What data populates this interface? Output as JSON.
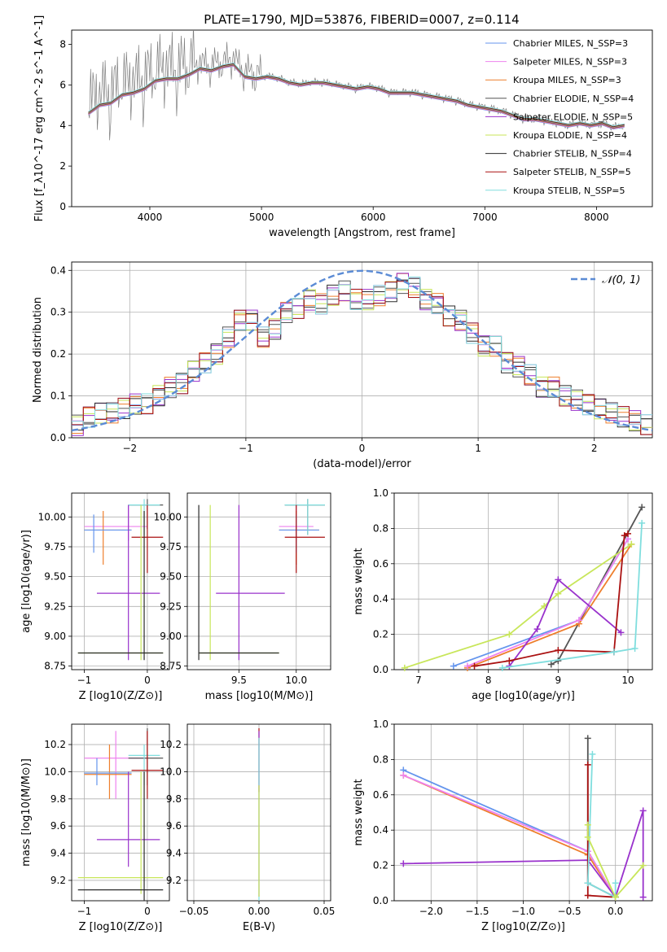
{
  "figure_title": "PLATE=1790, MJD=53876, FIBERID=0007, z=0.114",
  "chart_data": [
    {
      "type": "line",
      "name": "spectrum",
      "xlabel": "wavelength [Angstrom, rest frame]",
      "ylabel": "Flux [f_λ10^-17 erg cm^-2 s^-1 A^-1]",
      "xlim": [
        3300,
        8500
      ],
      "ylim": [
        0,
        8.7
      ],
      "xticks": [
        "4000",
        "5000",
        "6000",
        "7000",
        "8000"
      ],
      "yticks": [
        "0",
        "2",
        "4",
        "6",
        "8"
      ],
      "grid": false,
      "legend_position": "top-right",
      "data_x": [
        3450,
        3550,
        3650,
        3750,
        3850,
        3950,
        4050,
        4150,
        4250,
        4350,
        4450,
        4550,
        4650,
        4750,
        4850,
        4950,
        5050,
        5150,
        5250,
        5350,
        5450,
        5550,
        5650,
        5750,
        5850,
        5950,
        6050,
        6150,
        6250,
        6350,
        6450,
        6550,
        6650,
        6750,
        6850,
        6950,
        7050,
        7150,
        7250,
        7350,
        7450,
        7550,
        7650,
        7750,
        7850,
        7950,
        8050,
        8150,
        8250
      ],
      "data_y": [
        4.6,
        5.0,
        5.1,
        5.5,
        5.6,
        5.8,
        6.2,
        6.3,
        6.3,
        6.5,
        6.8,
        6.7,
        6.9,
        7.0,
        6.4,
        6.3,
        6.4,
        6.3,
        6.1,
        6.0,
        6.1,
        6.1,
        6.0,
        5.9,
        5.8,
        5.9,
        5.8,
        5.6,
        5.6,
        5.6,
        5.5,
        5.4,
        5.3,
        5.2,
        5.0,
        4.9,
        4.8,
        4.7,
        4.5,
        4.3,
        4.3,
        4.2,
        4.1,
        4.0,
        4.1,
        4.0,
        4.1,
        3.9,
        4.0
      ],
      "series": [
        {
          "name": "Chabrier MILES, N_SSP=3",
          "color": "#6495ed"
        },
        {
          "name": "Salpeter MILES, N_SSP=3",
          "color": "#ee82ee"
        },
        {
          "name": "Kroupa MILES, N_SSP=3",
          "color": "#ee7f2d"
        },
        {
          "name": "Chabrier ELODIE, N_SSP=4",
          "color": "#555555"
        },
        {
          "name": "Salpeter ELODIE, N_SSP=5",
          "color": "#9932cc"
        },
        {
          "name": "Kroupa ELODIE, N_SSP=4",
          "color": "#c8e65a"
        },
        {
          "name": "Chabrier STELIB, N_SSP=4",
          "color": "#2b2b2b"
        },
        {
          "name": "Salpeter STELIB, N_SSP=5",
          "color": "#aa1111"
        },
        {
          "name": "Kroupa STELIB, N_SSP=5",
          "color": "#80dede"
        }
      ]
    },
    {
      "type": "line",
      "name": "residual-distribution",
      "xlabel": "(data-model)/error",
      "ylabel": "Normed distribution",
      "xlim": [
        -2.5,
        2.5
      ],
      "ylim": [
        0,
        0.42
      ],
      "xticks": [
        "−2",
        "−1",
        "0",
        "1",
        "2"
      ],
      "yticks": [
        "0.0",
        "0.1",
        "0.2",
        "0.3",
        "0.4"
      ],
      "grid": true,
      "legend_position": "top-right",
      "legend": "𝒩(0, 1)",
      "hist_x": [
        -2.5,
        -2.4,
        -2.3,
        -2.2,
        -2.1,
        -2.0,
        -1.9,
        -1.8,
        -1.7,
        -1.6,
        -1.5,
        -1.4,
        -1.3,
        -1.2,
        -1.1,
        -1.0,
        -0.9,
        -0.8,
        -0.7,
        -0.6,
        -0.5,
        -0.4,
        -0.3,
        -0.2,
        -0.1,
        0.0,
        0.1,
        0.2,
        0.3,
        0.4,
        0.5,
        0.6,
        0.7,
        0.8,
        0.9,
        1.0,
        1.1,
        1.2,
        1.3,
        1.4,
        1.5,
        1.6,
        1.7,
        1.8,
        1.9,
        2.0,
        2.1,
        2.2,
        2.3,
        2.4
      ],
      "hist_y": [
        0.03,
        0.05,
        0.06,
        0.06,
        0.07,
        0.08,
        0.08,
        0.1,
        0.12,
        0.13,
        0.16,
        0.18,
        0.2,
        0.24,
        0.28,
        0.28,
        0.24,
        0.26,
        0.3,
        0.31,
        0.33,
        0.32,
        0.34,
        0.35,
        0.33,
        0.33,
        0.34,
        0.35,
        0.37,
        0.36,
        0.33,
        0.32,
        0.29,
        0.28,
        0.25,
        0.22,
        0.22,
        0.18,
        0.17,
        0.15,
        0.12,
        0.12,
        0.1,
        0.09,
        0.08,
        0.07,
        0.06,
        0.05,
        0.04,
        0.03
      ]
    },
    {
      "type": "scatter",
      "name": "age-vs-Z",
      "xlabel": "Z [log10(Z/Z⊙)]",
      "ylabel": "age [log10(age/yr)]",
      "xlim": [
        -1.2,
        0.35
      ],
      "ylim": [
        8.72,
        10.2
      ],
      "xticks": [
        "−1",
        "0"
      ],
      "yticks": [
        "8.75",
        "9.00",
        "9.25",
        "9.50",
        "9.75",
        "10.00"
      ],
      "grid": true,
      "points": [
        {
          "x": -0.3,
          "y": 9.92,
          "x0": -1.0,
          "x1": 0.0,
          "y0": 9.8,
          "y1": 10.1,
          "color": "#ee82ee"
        },
        {
          "x": -0.7,
          "y": 9.89,
          "x0": -1.0,
          "x1": -0.25,
          "y0": 9.6,
          "y1": 10.05,
          "color": "#ee7f2d"
        },
        {
          "x": -0.85,
          "y": 9.89,
          "x0": -1.0,
          "x1": -0.25,
          "y0": 9.7,
          "y1": 10.02,
          "color": "#6495ed"
        },
        {
          "x": 0.0,
          "y": 10.1,
          "x0": -0.3,
          "x1": 0.25,
          "y0": 9.9,
          "y1": 10.15,
          "color": "#555555"
        },
        {
          "x": -0.05,
          "y": 10.1,
          "x0": -0.3,
          "x1": 0.2,
          "y0": 9.85,
          "y1": 10.15,
          "color": "#80dede"
        },
        {
          "x": 0.0,
          "y": 9.83,
          "x0": -0.25,
          "x1": 0.25,
          "y0": 9.53,
          "y1": 10.1,
          "color": "#aa1111"
        },
        {
          "x": -0.3,
          "y": 9.36,
          "x0": -0.8,
          "x1": 0.2,
          "y0": 8.8,
          "y1": 10.1,
          "color": "#9932cc"
        },
        {
          "x": -0.1,
          "y": 8.86,
          "x0": -1.1,
          "x1": 0.25,
          "y0": 8.8,
          "y1": 10.1,
          "color": "#c8e65a"
        },
        {
          "x": -0.05,
          "y": 8.86,
          "x0": -1.1,
          "x1": 0.25,
          "y0": 8.8,
          "y1": 10.05,
          "color": "#2b2b2b"
        }
      ]
    },
    {
      "type": "scatter",
      "name": "age-vs-mass",
      "xlabel": "mass [log10(M/M⊙)]",
      "ylabel": "",
      "xlim": [
        9.05,
        10.3
      ],
      "ylim": [
        8.72,
        10.2
      ],
      "xticks": [
        "9.5",
        "10.0"
      ],
      "yticks": [
        "8.75",
        "9.00",
        "9.25",
        "9.50",
        "9.75",
        "10.00"
      ],
      "grid": true,
      "points": [
        {
          "x": 10.0,
          "y": 9.92,
          "x0": 9.85,
          "x1": 10.15,
          "y0": 9.8,
          "y1": 10.1,
          "color": "#ee82ee"
        },
        {
          "x": 10.0,
          "y": 9.89,
          "x0": 9.85,
          "x1": 10.2,
          "y0": 9.6,
          "y1": 10.05,
          "color": "#ee7f2d"
        },
        {
          "x": 10.0,
          "y": 9.89,
          "x0": 9.85,
          "x1": 10.2,
          "y0": 9.7,
          "y1": 10.02,
          "color": "#6495ed"
        },
        {
          "x": 10.1,
          "y": 10.1,
          "x0": 9.9,
          "x1": 10.25,
          "y0": 9.85,
          "y1": 10.15,
          "color": "#555555"
        },
        {
          "x": 10.1,
          "y": 10.1,
          "x0": 9.9,
          "x1": 10.25,
          "y0": 9.85,
          "y1": 10.15,
          "color": "#80dede"
        },
        {
          "x": 10.0,
          "y": 9.83,
          "x0": 9.9,
          "x1": 10.25,
          "y0": 9.53,
          "y1": 10.1,
          "color": "#aa1111"
        },
        {
          "x": 9.5,
          "y": 9.36,
          "x0": 9.3,
          "x1": 9.9,
          "y0": 8.8,
          "y1": 10.1,
          "color": "#9932cc"
        },
        {
          "x": 9.25,
          "y": 8.86,
          "x0": 9.15,
          "x1": 9.85,
          "y0": 8.8,
          "y1": 10.1,
          "color": "#c8e65a"
        },
        {
          "x": 9.15,
          "y": 8.86,
          "x0": 9.15,
          "x1": 9.85,
          "y0": 8.8,
          "y1": 10.1,
          "color": "#2b2b2b"
        }
      ]
    },
    {
      "type": "line",
      "name": "mass-weight-vs-age",
      "xlabel": "age [log10(age/yr)]",
      "ylabel": "mass weight",
      "xlim": [
        6.65,
        10.35
      ],
      "ylim": [
        0,
        1.0
      ],
      "xticks": [
        "7",
        "8",
        "9",
        "10"
      ],
      "yticks": [
        "0.0",
        "0.2",
        "0.4",
        "0.6",
        "0.8",
        "1.0"
      ],
      "grid": true,
      "series": [
        {
          "name": "",
          "color": "#555555",
          "x": [
            8.9,
            9.0,
            10.2
          ],
          "y": [
            0.03,
            0.05,
            0.92
          ]
        },
        {
          "name": "",
          "color": "#6495ed",
          "x": [
            7.5,
            9.3,
            10.0
          ],
          "y": [
            0.02,
            0.28,
            0.74
          ]
        },
        {
          "name": "",
          "color": "#ee7f2d",
          "x": [
            7.7,
            9.3,
            10.05
          ],
          "y": [
            0.01,
            0.26,
            0.71
          ]
        },
        {
          "name": "",
          "color": "#ee82ee",
          "x": [
            7.7,
            9.3,
            10.0
          ],
          "y": [
            0.02,
            0.28,
            0.74
          ]
        },
        {
          "name": "",
          "color": "#c8e65a",
          "x": [
            6.8,
            8.3,
            8.8,
            9.0,
            10.05
          ],
          "y": [
            0.01,
            0.2,
            0.36,
            0.43,
            0.71
          ]
        },
        {
          "name": "",
          "color": "#9932cc",
          "x": [
            8.3,
            8.7,
            9.0,
            9.9
          ],
          "y": [
            0.02,
            0.23,
            0.51,
            0.21
          ]
        },
        {
          "name": "",
          "color": "#aa1111",
          "x": [
            7.8,
            8.3,
            9.0,
            9.8,
            9.95,
            10.0
          ],
          "y": [
            0.02,
            0.05,
            0.11,
            0.1,
            0.76,
            0.77
          ]
        },
        {
          "name": "",
          "color": "#80dede",
          "x": [
            8.2,
            9.8,
            10.1,
            10.2
          ],
          "y": [
            0.01,
            0.1,
            0.12,
            0.83
          ]
        }
      ]
    },
    {
      "type": "scatter",
      "name": "mass-vs-Z",
      "xlabel": "Z [log10(Z/Z⊙)]",
      "ylabel": "mass [log10(M/M⊙)]",
      "xlim": [
        -1.2,
        0.35
      ],
      "ylim": [
        9.05,
        10.35
      ],
      "xticks": [
        "−1",
        "0"
      ],
      "yticks": [
        "9.2",
        "9.4",
        "9.6",
        "9.8",
        "10.0",
        "10.2"
      ],
      "grid": true,
      "points": [
        {
          "x": -0.5,
          "y": 10.1,
          "x0": -1.0,
          "x1": 0.0,
          "y0": 9.8,
          "y1": 10.3,
          "color": "#ee82ee"
        },
        {
          "x": -0.6,
          "y": 9.98,
          "x0": -1.0,
          "x1": -0.25,
          "y0": 9.8,
          "y1": 10.2,
          "color": "#ee7f2d"
        },
        {
          "x": -0.8,
          "y": 9.99,
          "x0": -1.0,
          "x1": -0.25,
          "y0": 9.9,
          "y1": 10.1,
          "color": "#6495ed"
        },
        {
          "x": 0.0,
          "y": 10.1,
          "x0": -0.3,
          "x1": 0.25,
          "y0": 9.9,
          "y1": 10.32,
          "color": "#555555"
        },
        {
          "x": -0.05,
          "y": 10.12,
          "x0": -0.3,
          "x1": 0.2,
          "y0": 9.9,
          "y1": 10.2,
          "color": "#80dede"
        },
        {
          "x": 0.0,
          "y": 10.01,
          "x0": -0.25,
          "x1": 0.25,
          "y0": 9.8,
          "y1": 10.3,
          "color": "#aa1111"
        },
        {
          "x": -0.3,
          "y": 9.5,
          "x0": -0.8,
          "x1": 0.2,
          "y0": 9.3,
          "y1": 10.0,
          "color": "#9932cc"
        },
        {
          "x": -0.1,
          "y": 9.22,
          "x0": -1.1,
          "x1": 0.25,
          "y0": 9.1,
          "y1": 10.0,
          "color": "#c8e65a"
        },
        {
          "x": -0.05,
          "y": 9.13,
          "x0": -1.1,
          "x1": 0.25,
          "y0": 9.05,
          "y1": 10.0,
          "color": "#2b2b2b"
        }
      ]
    },
    {
      "type": "scatter",
      "name": "mass-vs-ebv",
      "xlabel": "E(B-V)",
      "ylabel": "",
      "xlim": [
        -0.055,
        0.055
      ],
      "ylim": [
        9.05,
        10.35
      ],
      "xticks": [
        "−0.05",
        "0.00",
        "0.05"
      ],
      "yticks": [
        "9.2",
        "9.4",
        "9.6",
        "9.8",
        "10.0",
        "10.2"
      ],
      "grid": true,
      "points": [
        {
          "x": 0.0,
          "y": 10.3,
          "y0": 9.85,
          "y1": 10.32,
          "color": "#aa1111"
        },
        {
          "x": 0.0,
          "y": 10.1,
          "y0": 9.08,
          "y1": 10.3,
          "color": "#9932cc"
        },
        {
          "x": 0.0,
          "y": 9.5,
          "y0": 9.05,
          "y1": 10.25,
          "color": "#80dede"
        },
        {
          "x": 0.0,
          "y": 9.3,
          "y0": 9.08,
          "y1": 9.9,
          "color": "#c8e65a"
        }
      ]
    },
    {
      "type": "line",
      "name": "mass-weight-vs-Z",
      "xlabel": "Z [log10(Z/Z⊙)]",
      "ylabel": "mass weight",
      "xlim": [
        -2.4,
        0.4
      ],
      "ylim": [
        0,
        1.0
      ],
      "xticks": [
        "−2.0",
        "−1.5",
        "−1.0",
        "−0.5",
        "0.0"
      ],
      "yticks": [
        "0.0",
        "0.2",
        "0.4",
        "0.6",
        "0.8",
        "1.0"
      ],
      "grid": true,
      "series": [
        {
          "name": "",
          "color": "#6495ed",
          "x": [
            -2.3,
            -0.3,
            0.0
          ],
          "y": [
            0.74,
            0.28,
            0.02
          ]
        },
        {
          "name": "",
          "color": "#ee7f2d",
          "x": [
            -2.3,
            -0.3,
            0.0
          ],
          "y": [
            0.71,
            0.26,
            0.02
          ]
        },
        {
          "name": "",
          "color": "#ee82ee",
          "x": [
            -2.3,
            -0.3,
            0.0
          ],
          "y": [
            0.71,
            0.28,
            0.02
          ]
        },
        {
          "name": "",
          "color": "#9932cc",
          "x": [
            -2.3,
            -0.3,
            0.0,
            0.3,
            0.3
          ],
          "y": [
            0.21,
            0.23,
            0.02,
            0.51,
            0.02
          ]
        },
        {
          "name": "",
          "color": "#555555",
          "x": [
            -0.3,
            -0.3,
            0.0
          ],
          "y": [
            0.92,
            0.1,
            0.02
          ]
        },
        {
          "name": "",
          "color": "#aa1111",
          "x": [
            -0.3,
            -0.3,
            0.0
          ],
          "y": [
            0.77,
            0.03,
            0.02
          ]
        },
        {
          "name": "",
          "color": "#80dede",
          "x": [
            -0.25,
            -0.3,
            0.0,
            0.0
          ],
          "y": [
            0.83,
            0.1,
            0.02,
            0.1
          ]
        },
        {
          "name": "",
          "color": "#c8e65a",
          "x": [
            -0.3,
            -0.3,
            0.0,
            0.3
          ],
          "y": [
            0.43,
            0.36,
            0.02,
            0.2
          ]
        }
      ]
    }
  ]
}
